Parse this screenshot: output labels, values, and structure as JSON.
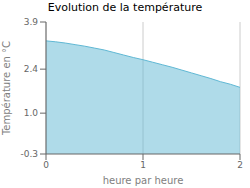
{
  "chart_data": {
    "type": "area",
    "title": "Evolution de la température",
    "xlabel": "heure par heure",
    "ylabel": "Température en °C",
    "x": [
      0,
      0.1,
      0.2,
      0.3,
      0.4,
      0.5,
      0.6,
      0.7,
      0.8,
      0.9,
      1.0,
      1.1,
      1.2,
      1.3,
      1.4,
      1.5,
      1.6,
      1.7,
      1.8,
      1.9,
      2.0
    ],
    "values": [
      3.3,
      3.27,
      3.23,
      3.18,
      3.13,
      3.07,
      3.01,
      2.93,
      2.85,
      2.77,
      2.7,
      2.62,
      2.54,
      2.46,
      2.37,
      2.28,
      2.19,
      2.1,
      2.0,
      1.92,
      1.82
    ],
    "xlim": [
      0,
      2
    ],
    "ylim": [
      -0.3,
      3.9
    ],
    "xticks": [
      0,
      1,
      2
    ],
    "yticks": [
      -0.3,
      {
        "value": 1,
        "label": "1.0"
      },
      2.4,
      3.9
    ],
    "color": "#60b8d4",
    "grid": "x"
  }
}
